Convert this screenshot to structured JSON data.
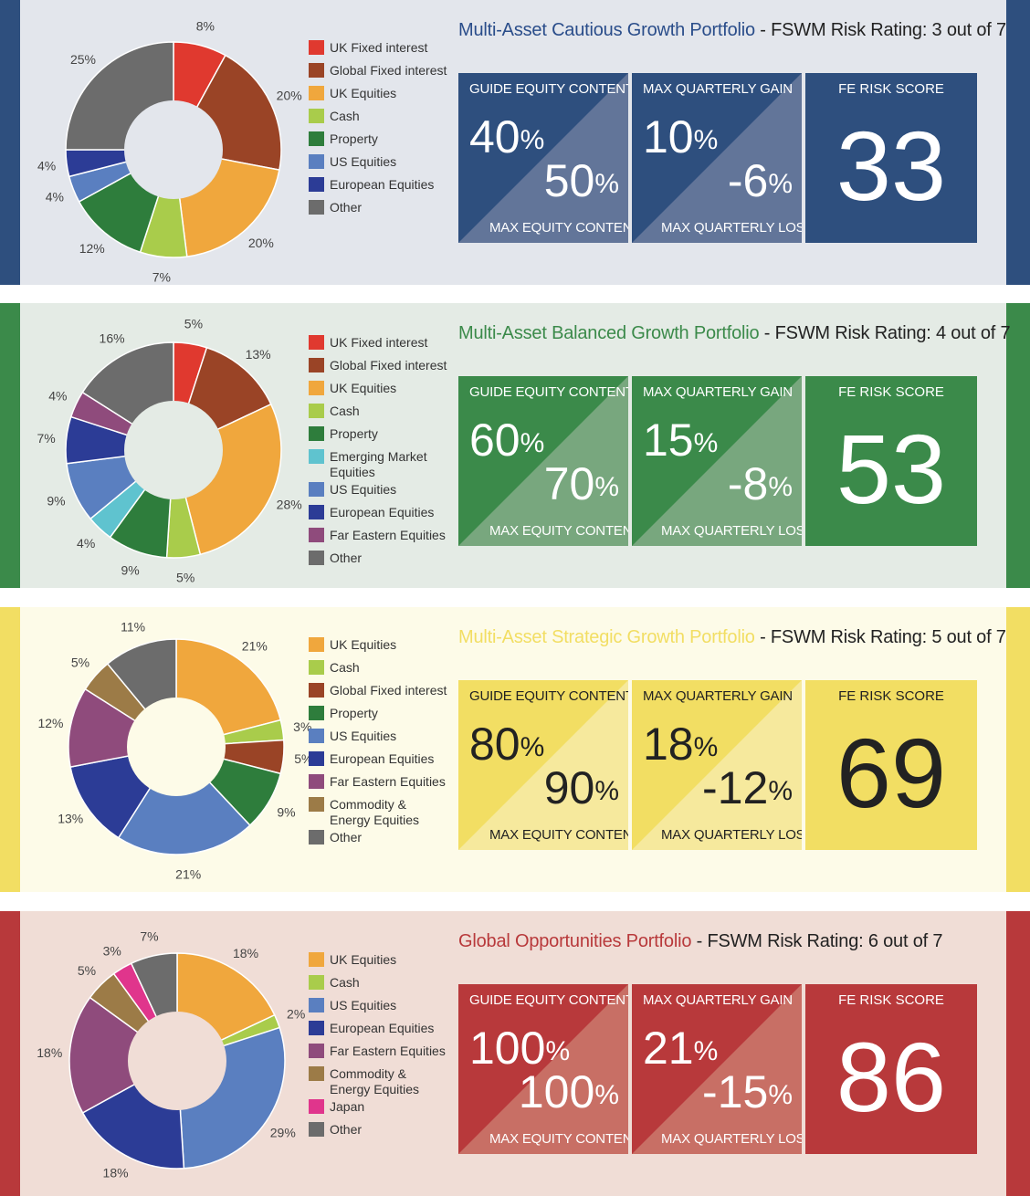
{
  "panels": [
    {
      "name": "Multi-Asset Cautious Growth Portfolio",
      "rating": " - FSWM Risk Rating: 3 out of 7",
      "theme": {
        "bg": "#e3e6ec",
        "stripe": "#2e4f7e",
        "title": "#2a4d8a",
        "box": "#2e4f7e",
        "tri": "#627599",
        "text": "#ffffff"
      },
      "guide_equity": "40%",
      "max_equity": "50%",
      "max_gain": "10%",
      "max_loss": "-6 %",
      "fe_score": "33",
      "chart_data": {
        "type": "pie",
        "labels": [
          "UK Fixed interest",
          "Global Fixed interest",
          "UK Equities",
          "Cash",
          "Property",
          "US Equities",
          "European Equities",
          "Other"
        ],
        "values": [
          8,
          20,
          20,
          7,
          12,
          4,
          4,
          25
        ],
        "colors": [
          "#e0392f",
          "#9a4426",
          "#f0a73d",
          "#a9cc4b",
          "#2e7d3c",
          "#5a7fc0",
          "#2c3c96",
          "#6c6c6c"
        ],
        "value_labels": [
          "8%",
          "20%",
          "20%",
          "7%",
          "12%",
          "4%",
          "4%",
          "25%"
        ]
      }
    },
    {
      "name": "Multi-Asset Balanced Growth Portfolio",
      "rating": " - FSWM Risk Rating: 4 out of 7",
      "theme": {
        "bg": "#e4ebe5",
        "stripe": "#3b8a4a",
        "title": "#3b8a4a",
        "box": "#3b8a4a",
        "tri": "#78a77e",
        "text": "#ffffff"
      },
      "guide_equity": "60%",
      "max_equity": "70%",
      "max_gain": "15%",
      "max_loss": "-8%",
      "fe_score": "53",
      "chart_data": {
        "type": "pie",
        "labels": [
          "UK Fixed interest",
          "Global Fixed interest",
          "UK Equities",
          "Cash",
          "Property",
          "Emerging Market Equities",
          "US Equities",
          "European Equities",
          "Far Eastern Equities",
          "Other"
        ],
        "values": [
          5,
          13,
          28,
          5,
          9,
          4,
          9,
          7,
          4,
          16
        ],
        "colors": [
          "#e0392f",
          "#9a4426",
          "#f0a73d",
          "#a9cc4b",
          "#2e7d3c",
          "#5fc3cf",
          "#5a7fc0",
          "#2c3c96",
          "#8f4b7c",
          "#6c6c6c"
        ],
        "value_labels": [
          "5%",
          "13%",
          "28%",
          "5%",
          "9%",
          "4%",
          "9%",
          "7%",
          "4%",
          "16%"
        ]
      }
    },
    {
      "name": "Multi-Asset Strategic Growth Portfolio",
      "rating": " - FSWM Risk Rating: 5 out of 7",
      "theme": {
        "bg": "#fdfbe8",
        "stripe": "#f2de63",
        "title": "#f2de63",
        "box": "#f2de63",
        "tri": "#f6e99d",
        "text": "#222222"
      },
      "guide_equity": "80%",
      "max_equity": "90%",
      "max_gain": "18%",
      "max_loss": "-12%",
      "fe_score": "69",
      "chart_data": {
        "type": "pie",
        "labels": [
          "UK Equities",
          "Cash",
          "Global Fixed interest",
          "Property",
          "US Equities",
          "European Equities",
          "Far Eastern Equities",
          "Commodity & Energy Equities",
          "Other"
        ],
        "values": [
          21,
          3,
          5,
          9,
          21,
          13,
          12,
          5,
          11
        ],
        "colors": [
          "#f0a73d",
          "#a9cc4b",
          "#9a4426",
          "#2e7d3c",
          "#5a7fc0",
          "#2c3c96",
          "#8f4b7c",
          "#9c7b47",
          "#6c6c6c"
        ],
        "value_labels": [
          "21%",
          "3%",
          "5%",
          "9%",
          "21%",
          "13%",
          "12%",
          "5%",
          "11%"
        ]
      }
    },
    {
      "name": "Global Opportunities Portfolio",
      "rating": " - FSWM Risk Rating: 6 out of 7",
      "theme": {
        "bg": "#f0ddd6",
        "stripe": "#b8393b",
        "title": "#b8393b",
        "box": "#b8393b",
        "tri": "#c86f65",
        "text": "#ffffff"
      },
      "guide_equity": "100%",
      "max_equity": "100%",
      "max_gain": "21%",
      "max_loss": "-15%",
      "fe_score": "86",
      "chart_data": {
        "type": "pie",
        "labels": [
          "UK Equities",
          "Cash",
          "US Equities",
          "European Equities",
          "Far Eastern Equities",
          "Commodity & Energy Equities",
          "Japan",
          "Other"
        ],
        "values": [
          18,
          2,
          29,
          18,
          18,
          5,
          3,
          7
        ],
        "colors": [
          "#f0a73d",
          "#a9cc4b",
          "#5a7fc0",
          "#2c3c96",
          "#8f4b7c",
          "#9c7b47",
          "#e0358c",
          "#6c6c6c"
        ],
        "value_labels": [
          "18%",
          "2%",
          "29%",
          "18%",
          "18%",
          "5%",
          "3%",
          "7%"
        ]
      }
    }
  ],
  "headers": {
    "guide_equity": "GUIDE EQUITY CONTENT",
    "max_equity": "MAX EQUITY CONTENT",
    "max_gain": "MAX QUARTERLY GAIN",
    "max_loss": "MAX QUARTERLY LOSS",
    "fe_risk": "FE RISK SCORE"
  },
  "legend_lines": {
    "Emerging Market Equities": [
      "Emerging Market",
      "Equities"
    ],
    "Commodity & Energy Equities": [
      "Commodity &",
      "Energy Equities"
    ]
  }
}
